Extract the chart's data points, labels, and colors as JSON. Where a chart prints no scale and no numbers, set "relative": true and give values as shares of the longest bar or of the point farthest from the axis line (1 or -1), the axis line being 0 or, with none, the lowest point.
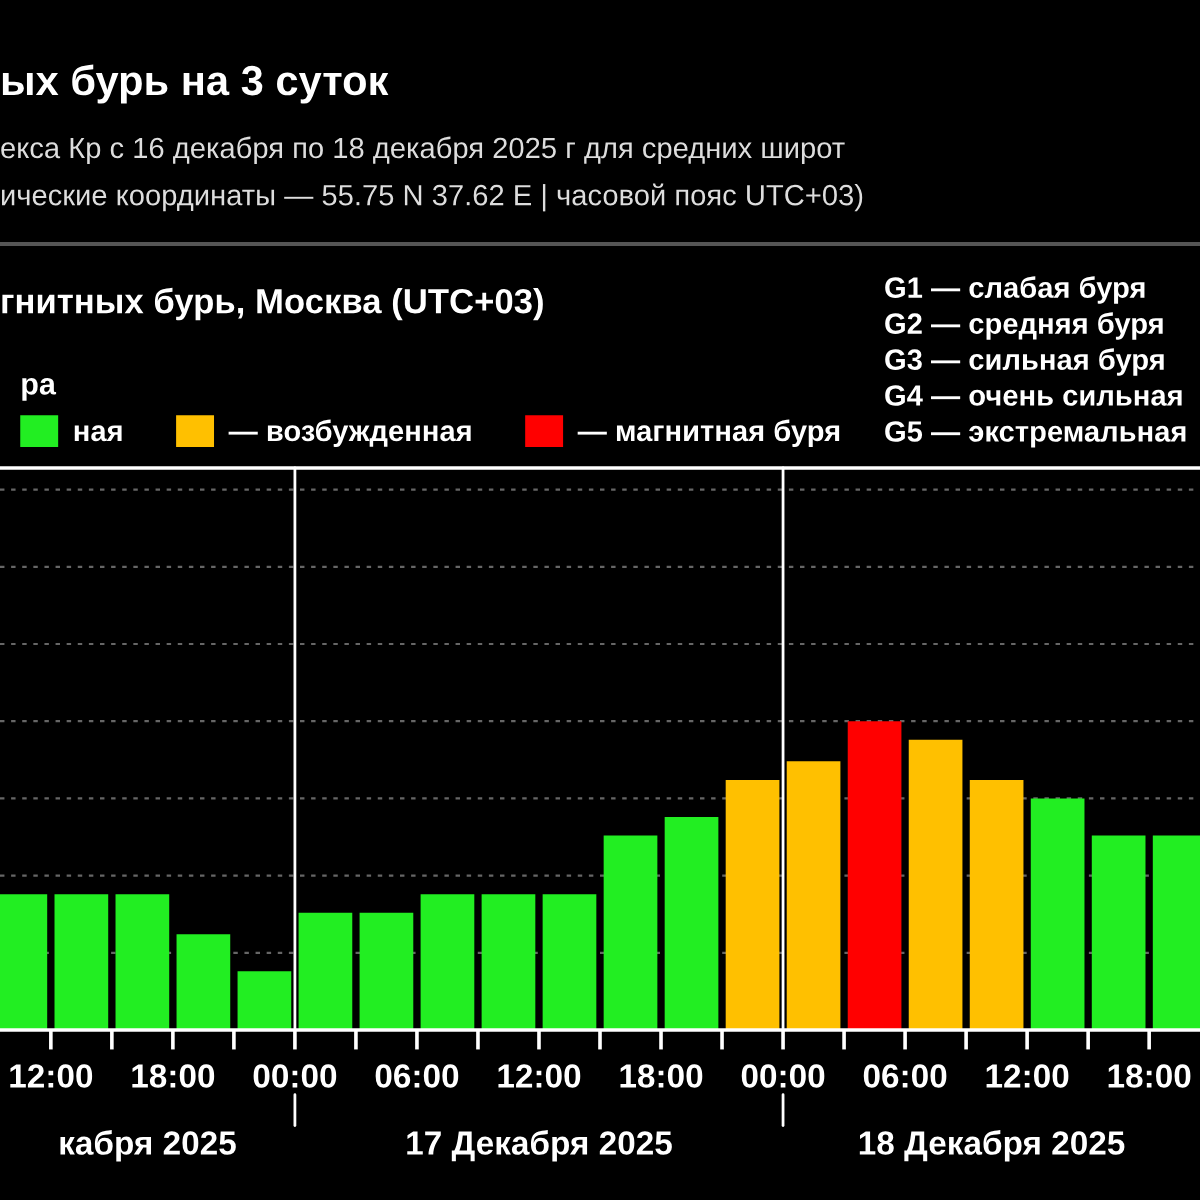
{
  "chart_data": {
    "type": "bar",
    "title": "ых бурь на 3 суток",
    "subtitle": "екса Кр с 16 декабря по 18 декабря 2025 г для средних широт\nические координаты — 55.75 N 37.62 E | часовой пояс UTC+03)",
    "relative": true,
    "x": [
      "2025-12-16T10:30",
      "2025-12-16T13:30",
      "2025-12-16T16:30",
      "2025-12-16T19:30",
      "2025-12-16T22:30",
      "2025-12-17T01:30",
      "2025-12-17T04:30",
      "2025-12-17T07:30",
      "2025-12-17T10:30",
      "2025-12-17T13:30",
      "2025-12-17T16:30",
      "2025-12-17T19:30",
      "2025-12-17T22:30",
      "2025-12-18T01:30",
      "2025-12-18T04:30",
      "2025-12-18T07:30",
      "2025-12-18T10:30",
      "2025-12-18T13:30",
      "2025-12-18T16:30",
      "2025-12-18T19:30"
    ],
    "series": [
      {
        "name": "ная",
        "color": "#22ee22",
        "values": [
          0.44,
          0.44,
          0.44,
          0.31,
          0.19,
          0.38,
          0.38,
          0.44,
          0.44,
          0.44,
          0.63,
          0.69,
          null,
          null,
          null,
          null,
          null,
          0.75,
          0.63,
          0.63
        ]
      },
      {
        "name": "— возбужденная",
        "color": "#ffc000",
        "values": [
          null,
          null,
          null,
          null,
          null,
          null,
          null,
          null,
          null,
          null,
          null,
          null,
          0.81,
          0.87,
          null,
          0.94,
          0.81,
          null,
          null,
          null
        ]
      },
      {
        "name": "— магнитная буря",
        "color": "#ff0000",
        "values": [
          null,
          null,
          null,
          null,
          null,
          null,
          null,
          null,
          null,
          null,
          null,
          null,
          null,
          null,
          1,
          null,
          null,
          null,
          null,
          null
        ]
      }
    ],
    "legend_title": "ра",
    "legend": "top left",
    "grid": "y",
    "xlim": [
      "2025-12-16T09:30",
      "2025-12-18T20:30"
    ],
    "xticks": [
      {
        "value": "2025-12-16T12:00",
        "label": "12:00"
      },
      {
        "value": "2025-12-16T15:00",
        "label": null
      },
      {
        "value": "2025-12-16T18:00",
        "label": "18:00"
      },
      {
        "value": "2025-12-16T21:00",
        "label": null
      },
      {
        "value": "2025-12-17T00:00",
        "label": "00:00"
      },
      {
        "value": "2025-12-17T03:00",
        "label": null
      },
      {
        "value": "2025-12-17T06:00",
        "label": "06:00"
      },
      {
        "value": "2025-12-17T09:00",
        "label": null
      },
      {
        "value": "2025-12-17T12:00",
        "label": "12:00"
      },
      {
        "value": "2025-12-17T15:00",
        "label": null
      },
      {
        "value": "2025-12-17T18:00",
        "label": "18:00"
      },
      {
        "value": "2025-12-17T21:00",
        "label": null
      },
      {
        "value": "2025-12-18T00:00",
        "label": "00:00"
      },
      {
        "value": "2025-12-18T03:00",
        "label": null
      },
      {
        "value": "2025-12-18T06:00",
        "label": "06:00"
      },
      {
        "value": "2025-12-18T09:00",
        "label": null
      },
      {
        "value": "2025-12-18T12:00",
        "label": "12:00"
      },
      {
        "value": "2025-12-18T15:00",
        "label": null
      },
      {
        "value": "2025-12-18T18:00",
        "label": "18:00"
      }
    ],
    "ref_lines": [
      {
        "axis": "x",
        "value": "2025-12-17T00:00",
        "color": "#ffffff"
      },
      {
        "axis": "x",
        "value": "2025-12-18T00:00",
        "color": "#ffffff"
      }
    ],
    "annotations": [
      "гнитных бурь, Москва (UTC+03)",
      "G1 — слабая буря",
      "G2 — средняя буря",
      "G3 — сильная буря",
      "G4 — очень сильная",
      "G5 — экстремальная",
      "кабря 2025",
      "17 Декабря 2025",
      "18 Декабря 2025"
    ]
  }
}
